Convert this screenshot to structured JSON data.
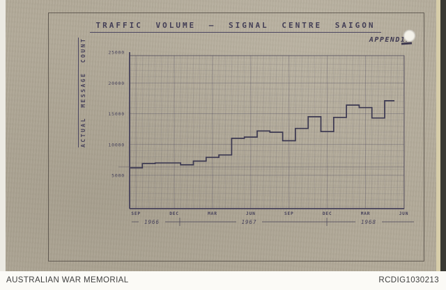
{
  "document": {
    "title": "TRAFFIC VOLUME — SIGNAL CENTRE SAIGON",
    "appendix_label": "APPENDIX",
    "y_axis_title": "ACTUAL MESSAGE COUNT"
  },
  "footer": {
    "left": "AUSTRALIAN WAR MEMORIAL",
    "right": "RCDIG1030213"
  },
  "colors": {
    "paper": "#b2aa99",
    "ink": "#45405a",
    "line": "#3a3750",
    "footer_bg": "#fbfaf6",
    "footer_text": "#3e3e3e"
  },
  "chart_data": {
    "type": "line",
    "subtype": "step",
    "title": "TRAFFIC VOLUME — SIGNAL CENTRE SAIGON",
    "xlabel": "",
    "ylabel": "ACTUAL MESSAGE COUNT",
    "ylim": [
      0,
      25000
    ],
    "grid": true,
    "legend_position": "none",
    "y_ticks": [
      25000,
      20000,
      15000,
      10000,
      5000
    ],
    "x_tick_labels": [
      "SEP",
      "DEC",
      "MAR",
      "JUN",
      "SEP",
      "DEC",
      "MAR",
      "JUN"
    ],
    "year_labels": [
      "1966",
      "1967",
      "1968"
    ],
    "categories": [
      "SEP 1966",
      "OCT 1966",
      "NOV 1966",
      "DEC 1966",
      "JAN 1967",
      "FEB 1967",
      "MAR 1967",
      "APR 1967",
      "MAY 1967",
      "JUN 1967",
      "JUL 1967",
      "AUG 1967",
      "SEP 1967",
      "OCT 1967",
      "NOV 1967",
      "DEC 1967",
      "JAN 1968",
      "FEB 1968",
      "MAR 1968",
      "APR 1968",
      "MAY 1968"
    ],
    "values": [
      6200,
      6900,
      7000,
      7000,
      6700,
      7300,
      7900,
      8300,
      11000,
      11200,
      12200,
      12000,
      10600,
      12600,
      14500,
      12100,
      14400,
      16400,
      16000,
      14300,
      17100
    ]
  }
}
